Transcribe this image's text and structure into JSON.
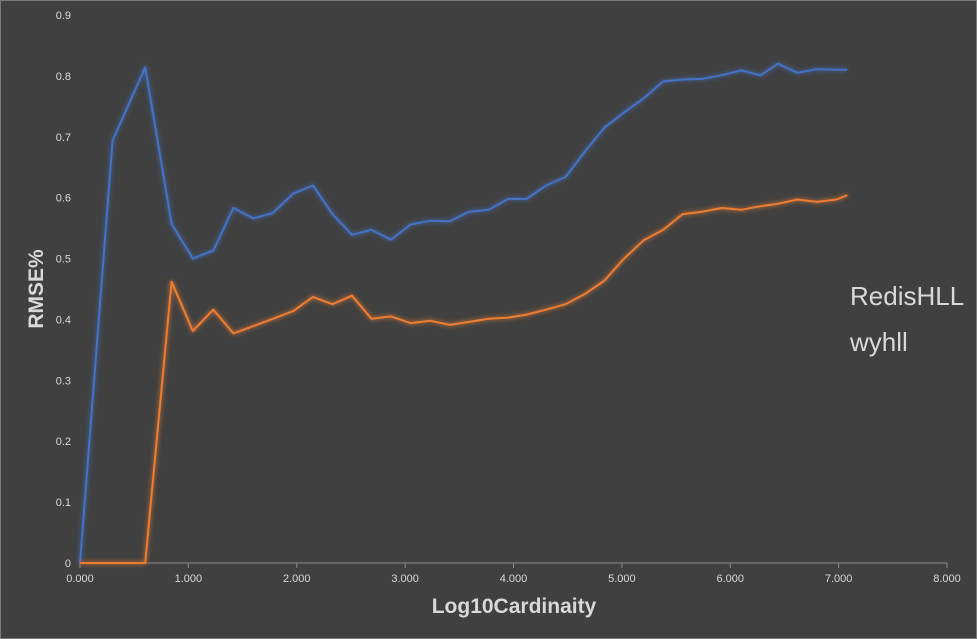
{
  "chart_data": {
    "type": "line",
    "title": "",
    "xlabel": "Log10Cardinaity",
    "ylabel": "RMSE%",
    "xlim": [
      0,
      8
    ],
    "ylim": [
      0,
      0.9
    ],
    "x_ticks": [
      "0.000",
      "1.000",
      "2.000",
      "3.000",
      "4.000",
      "5.000",
      "6.000",
      "7.000",
      "8.000"
    ],
    "y_ticks": [
      "0",
      "0.1",
      "0.2",
      "0.3",
      "0.4",
      "0.5",
      "0.6",
      "0.7",
      "0.8",
      "0.9"
    ],
    "grid": false,
    "legend_position": "right",
    "series": [
      {
        "name": "RedisHLL",
        "color": "#4472c4",
        "x": [
          0,
          0.301,
          0.602,
          0.845,
          1.041,
          1.23,
          1.415,
          1.6,
          1.78,
          1.97,
          2.15,
          2.33,
          2.51,
          2.69,
          2.87,
          3.05,
          3.23,
          3.41,
          3.59,
          3.77,
          3.95,
          4.12,
          4.3,
          4.48,
          4.66,
          4.84,
          5.02,
          5.2,
          5.38,
          5.56,
          5.74,
          5.92,
          6.1,
          6.28,
          6.44,
          6.62,
          6.8,
          6.98,
          7.08
        ],
        "y": [
          0,
          0.694,
          0.814,
          0.557,
          0.5,
          0.513,
          0.583,
          0.566,
          0.575,
          0.607,
          0.62,
          0.573,
          0.539,
          0.547,
          0.531,
          0.556,
          0.562,
          0.561,
          0.577,
          0.58,
          0.598,
          0.598,
          0.62,
          0.634,
          0.676,
          0.715,
          0.74,
          0.763,
          0.791,
          0.794,
          0.795,
          0.801,
          0.809,
          0.801,
          0.82,
          0.805,
          0.811,
          0.81,
          0.81
        ]
      },
      {
        "name": "wyhll",
        "color": "#ed7d31",
        "x": [
          0,
          0.301,
          0.602,
          0.845,
          1.041,
          1.23,
          1.415,
          1.6,
          1.78,
          1.97,
          2.15,
          2.33,
          2.51,
          2.69,
          2.87,
          3.05,
          3.23,
          3.41,
          3.59,
          3.77,
          3.95,
          4.12,
          4.3,
          4.48,
          4.66,
          4.84,
          5.02,
          5.2,
          5.38,
          5.56,
          5.74,
          5.92,
          6.1,
          6.28,
          6.44,
          6.62,
          6.8,
          6.98,
          7.08
        ],
        "y": [
          0,
          0,
          0,
          0.462,
          0.381,
          0.416,
          0.377,
          0.389,
          0.401,
          0.414,
          0.437,
          0.425,
          0.439,
          0.401,
          0.405,
          0.394,
          0.398,
          0.391,
          0.396,
          0.401,
          0.403,
          0.408,
          0.416,
          0.425,
          0.442,
          0.464,
          0.5,
          0.53,
          0.547,
          0.573,
          0.577,
          0.583,
          0.58,
          0.586,
          0.59,
          0.597,
          0.593,
          0.597,
          0.604
        ]
      }
    ]
  }
}
